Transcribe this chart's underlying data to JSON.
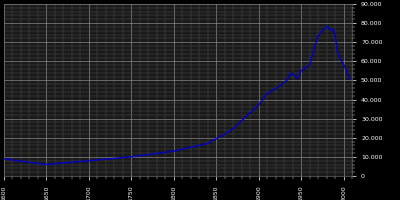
{
  "background_color": "#000000",
  "plot_bg_color": "#1a1a1a",
  "grid_color_major": "#888888",
  "grid_color_minor": "#555555",
  "line_color": "#0000cc",
  "years": [
    1600,
    1650,
    1700,
    1750,
    1800,
    1820,
    1840,
    1852,
    1861,
    1871,
    1880,
    1890,
    1900,
    1910,
    1925,
    1933,
    1939,
    1946,
    1950,
    1960,
    1970,
    1975,
    1980,
    1981,
    1982,
    1983,
    1984,
    1985,
    1986,
    1987,
    1988,
    1989,
    1990,
    1991,
    1992,
    1993,
    1994,
    1995,
    1996,
    1997,
    1998,
    1999,
    2000,
    2001,
    2002,
    2003,
    2004,
    2005,
    2006,
    2007,
    2008
  ],
  "population": [
    9000,
    6000,
    8000,
    10000,
    13000,
    15000,
    17000,
    20000,
    22000,
    25000,
    29000,
    33000,
    37000,
    43000,
    47000,
    50000,
    54000,
    51000,
    55000,
    58000,
    73000,
    76000,
    78000,
    78500,
    78000,
    77500,
    77000,
    76500,
    76000,
    76500,
    77000,
    76000,
    74000,
    71000,
    68000,
    66000,
    64000,
    63000,
    62000,
    61000,
    60000,
    59000,
    58500,
    57500,
    56500,
    55500,
    54500,
    53500,
    52500,
    51500,
    50500
  ],
  "xmin": 1600,
  "xmax": 2010,
  "ymin": 0,
  "ymax": 90000,
  "yticks": [
    0,
    10000,
    20000,
    30000,
    40000,
    50000,
    60000,
    70000,
    80000,
    90000
  ],
  "ytick_labels": [
    "0",
    "10.000",
    "20.000",
    "30.000",
    "40.000",
    "50.000",
    "60.000",
    "70.000",
    "80.000",
    "90.000"
  ],
  "xtick_major_step": 50,
  "xtick_minor_step": 10,
  "ytick_minor_step": 2000,
  "line_width": 1.0,
  "tick_label_size": 4.5,
  "ylabel_side": "right"
}
